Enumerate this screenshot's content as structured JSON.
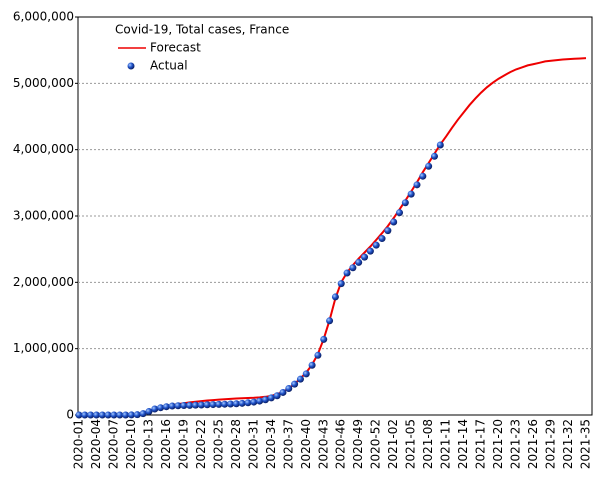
{
  "chart_data": {
    "type": "line",
    "title": "Covid-19, Total cases, France",
    "categories": [
      "2020-01",
      null,
      null,
      "2020-04",
      null,
      null,
      "2020-07",
      null,
      null,
      "2020-10",
      null,
      null,
      "2020-13",
      null,
      null,
      "2020-16",
      null,
      null,
      "2020-19",
      null,
      null,
      "2020-22",
      null,
      null,
      "2020-25",
      null,
      null,
      "2020-28",
      null,
      null,
      "2020-31",
      null,
      null,
      "2020-34",
      null,
      null,
      "2020-37",
      null,
      null,
      "2020-40",
      null,
      null,
      "2020-43",
      null,
      null,
      "2020-46",
      null,
      null,
      "2020-49",
      null,
      null,
      "2020-52",
      null,
      null,
      "2021-02",
      null,
      null,
      "2021-05",
      null,
      null,
      "2021-08",
      null,
      null,
      "2021-11",
      null,
      null,
      "2021-14",
      null,
      null,
      "2021-17",
      null,
      null,
      "2021-20",
      null,
      null,
      "2021-23",
      null,
      null,
      "2021-26",
      null,
      null,
      "2021-29",
      null,
      null,
      "2021-32",
      null,
      null,
      "2021-35"
    ],
    "series": [
      {
        "name": "Forecast",
        "color": "#ee0000",
        "style": "line",
        "values": [
          0,
          0,
          0,
          0,
          0,
          0,
          0,
          0,
          0,
          0,
          10000,
          30000,
          60000,
          90000,
          115000,
          135000,
          150000,
          165000,
          178000,
          190000,
          200000,
          210000,
          218000,
          225000,
          232000,
          238000,
          243000,
          248000,
          252000,
          256000,
          260000,
          266000,
          275000,
          290000,
          315000,
          350000,
          400000,
          470000,
          550000,
          640000,
          760000,
          920000,
          1150000,
          1430000,
          1760000,
          2000000,
          2150000,
          2260000,
          2360000,
          2450000,
          2540000,
          2640000,
          2740000,
          2850000,
          2970000,
          3100000,
          3230000,
          3370000,
          3510000,
          3660000,
          3800000,
          3940000,
          4080000,
          4200000,
          4330000,
          4450000,
          4560000,
          4670000,
          4770000,
          4860000,
          4940000,
          5010000,
          5070000,
          5120000,
          5170000,
          5210000,
          5240000,
          5270000,
          5290000,
          5310000,
          5330000,
          5340000,
          5350000,
          5360000,
          5365000,
          5370000,
          5375000,
          5380000
        ]
      },
      {
        "name": "Actual",
        "color": "#2255cc",
        "style": "dots",
        "values": [
          0,
          0,
          0,
          0,
          0,
          0,
          0,
          0,
          200,
          1100,
          5000,
          20000,
          52000,
          90000,
          110000,
          125000,
          135000,
          140000,
          143000,
          145000,
          148000,
          151000,
          154000,
          157000,
          160000,
          163000,
          166000,
          170000,
          176000,
          184000,
          195000,
          210000,
          230000,
          258000,
          290000,
          340000,
          400000,
          465000,
          540000,
          620000,
          750000,
          900000,
          1140000,
          1420000,
          1780000,
          1980000,
          2140000,
          2220000,
          2300000,
          2380000,
          2470000,
          2560000,
          2660000,
          2780000,
          2910000,
          3050000,
          3200000,
          3330000,
          3470000,
          3600000,
          3750000,
          3900000,
          4070000,
          null,
          null,
          null,
          null,
          null,
          null,
          null,
          null,
          null,
          null,
          null,
          null,
          null,
          null,
          null,
          null,
          null,
          null,
          null,
          null,
          null,
          null,
          null,
          null,
          null
        ]
      }
    ],
    "ylim": [
      0,
      6000000
    ],
    "yticks": [
      0,
      {
        "value": 1000000,
        "label": "1,000,000"
      },
      {
        "value": 2000000,
        "label": "2,000,000"
      },
      {
        "value": 3000000,
        "label": "3,000,000"
      },
      {
        "value": 4000000,
        "label": "4,000,000"
      },
      {
        "value": 5000000,
        "label": "5,000,000"
      },
      {
        "value": 6000000,
        "label": "6,000,000"
      }
    ],
    "grid": true
  }
}
